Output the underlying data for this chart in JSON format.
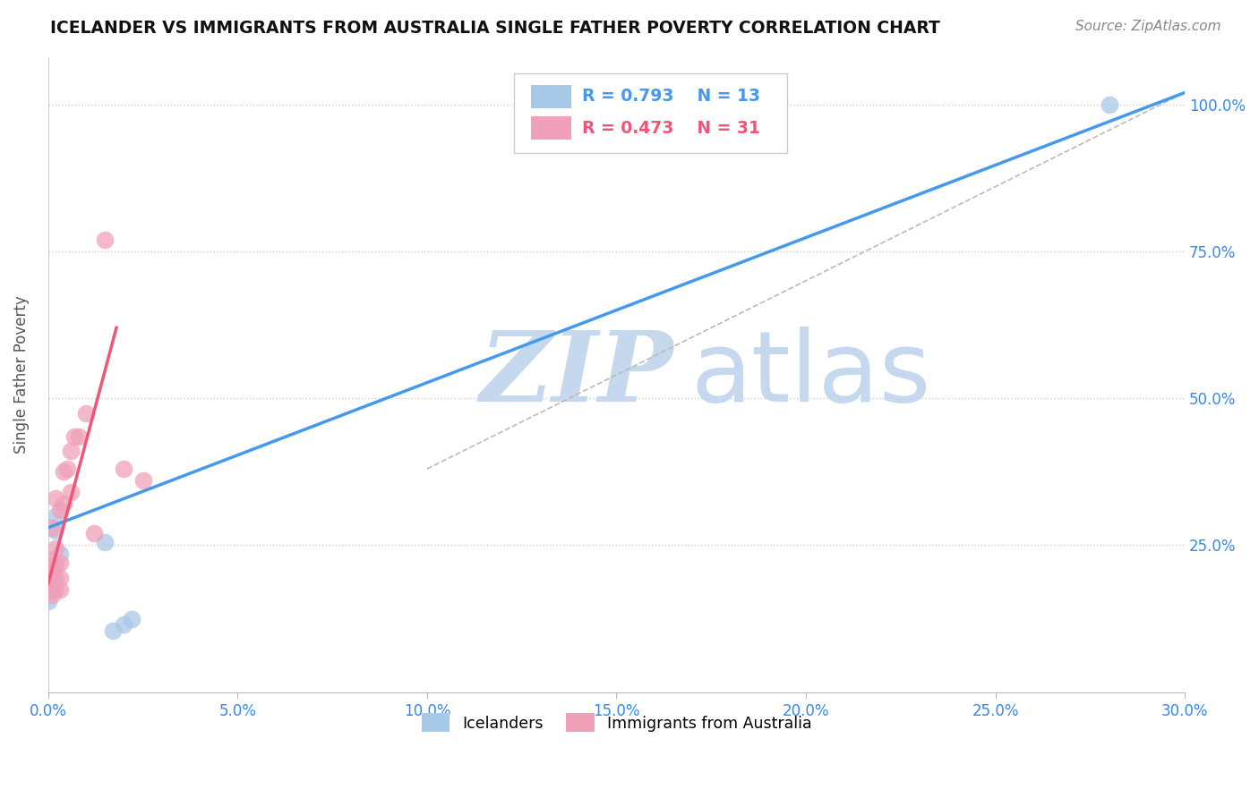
{
  "title": "ICELANDER VS IMMIGRANTS FROM AUSTRALIA SINGLE FATHER POVERTY CORRELATION CHART",
  "source": "Source: ZipAtlas.com",
  "ylabel": "Single Father Poverty",
  "yticks_right": [
    "25.0%",
    "50.0%",
    "75.0%",
    "100.0%"
  ],
  "xtick_labels": [
    "0.0%",
    "5.0%",
    "10.0%",
    "15.0%",
    "20.0%",
    "25.0%",
    "30.0%"
  ],
  "legend_blue": {
    "R": "0.793",
    "N": "13",
    "label": "Icelanders"
  },
  "legend_pink": {
    "R": "0.473",
    "N": "31",
    "label": "Immigrants from Australia"
  },
  "icelanders_x": [
    0.0,
    0.0,
    0.0,
    0.001,
    0.001,
    0.002,
    0.002,
    0.003,
    0.015,
    0.017,
    0.02,
    0.022,
    0.28
  ],
  "icelanders_y": [
    0.155,
    0.175,
    0.195,
    0.185,
    0.215,
    0.275,
    0.3,
    0.235,
    0.255,
    0.105,
    0.115,
    0.125,
    1.0
  ],
  "immigrants_x": [
    0.0,
    0.0,
    0.0,
    0.0,
    0.0,
    0.001,
    0.001,
    0.001,
    0.001,
    0.001,
    0.002,
    0.002,
    0.002,
    0.002,
    0.002,
    0.003,
    0.003,
    0.003,
    0.003,
    0.004,
    0.004,
    0.005,
    0.006,
    0.006,
    0.007,
    0.008,
    0.01,
    0.012,
    0.015,
    0.02,
    0.025
  ],
  "immigrants_y": [
    0.175,
    0.185,
    0.195,
    0.21,
    0.225,
    0.165,
    0.175,
    0.195,
    0.21,
    0.28,
    0.175,
    0.195,
    0.215,
    0.245,
    0.33,
    0.175,
    0.195,
    0.22,
    0.31,
    0.32,
    0.375,
    0.38,
    0.34,
    0.41,
    0.435,
    0.435,
    0.475,
    0.27,
    0.77,
    0.38,
    0.36
  ],
  "blue_line_x": [
    0.0,
    0.3
  ],
  "blue_line_y": [
    0.28,
    1.02
  ],
  "pink_line_x": [
    0.0,
    0.018
  ],
  "pink_line_y": [
    0.185,
    0.62
  ],
  "diag_line_x": [
    0.1,
    0.3
  ],
  "diag_line_y": [
    0.38,
    1.02
  ],
  "blue_color": "#a8c8e8",
  "pink_color": "#f0a0b8",
  "blue_line_color": "#4499ee",
  "pink_line_color": "#ee5577",
  "diag_line_color": "#bbbbbb",
  "watermark_zip_color": "#c5d8ee",
  "watermark_atlas_color": "#c5d8ee",
  "background_color": "#ffffff",
  "xlim": [
    0.0,
    0.3
  ],
  "ylim": [
    0.0,
    1.08
  ],
  "ytick_vals": [
    0.25,
    0.5,
    0.75,
    1.0
  ]
}
